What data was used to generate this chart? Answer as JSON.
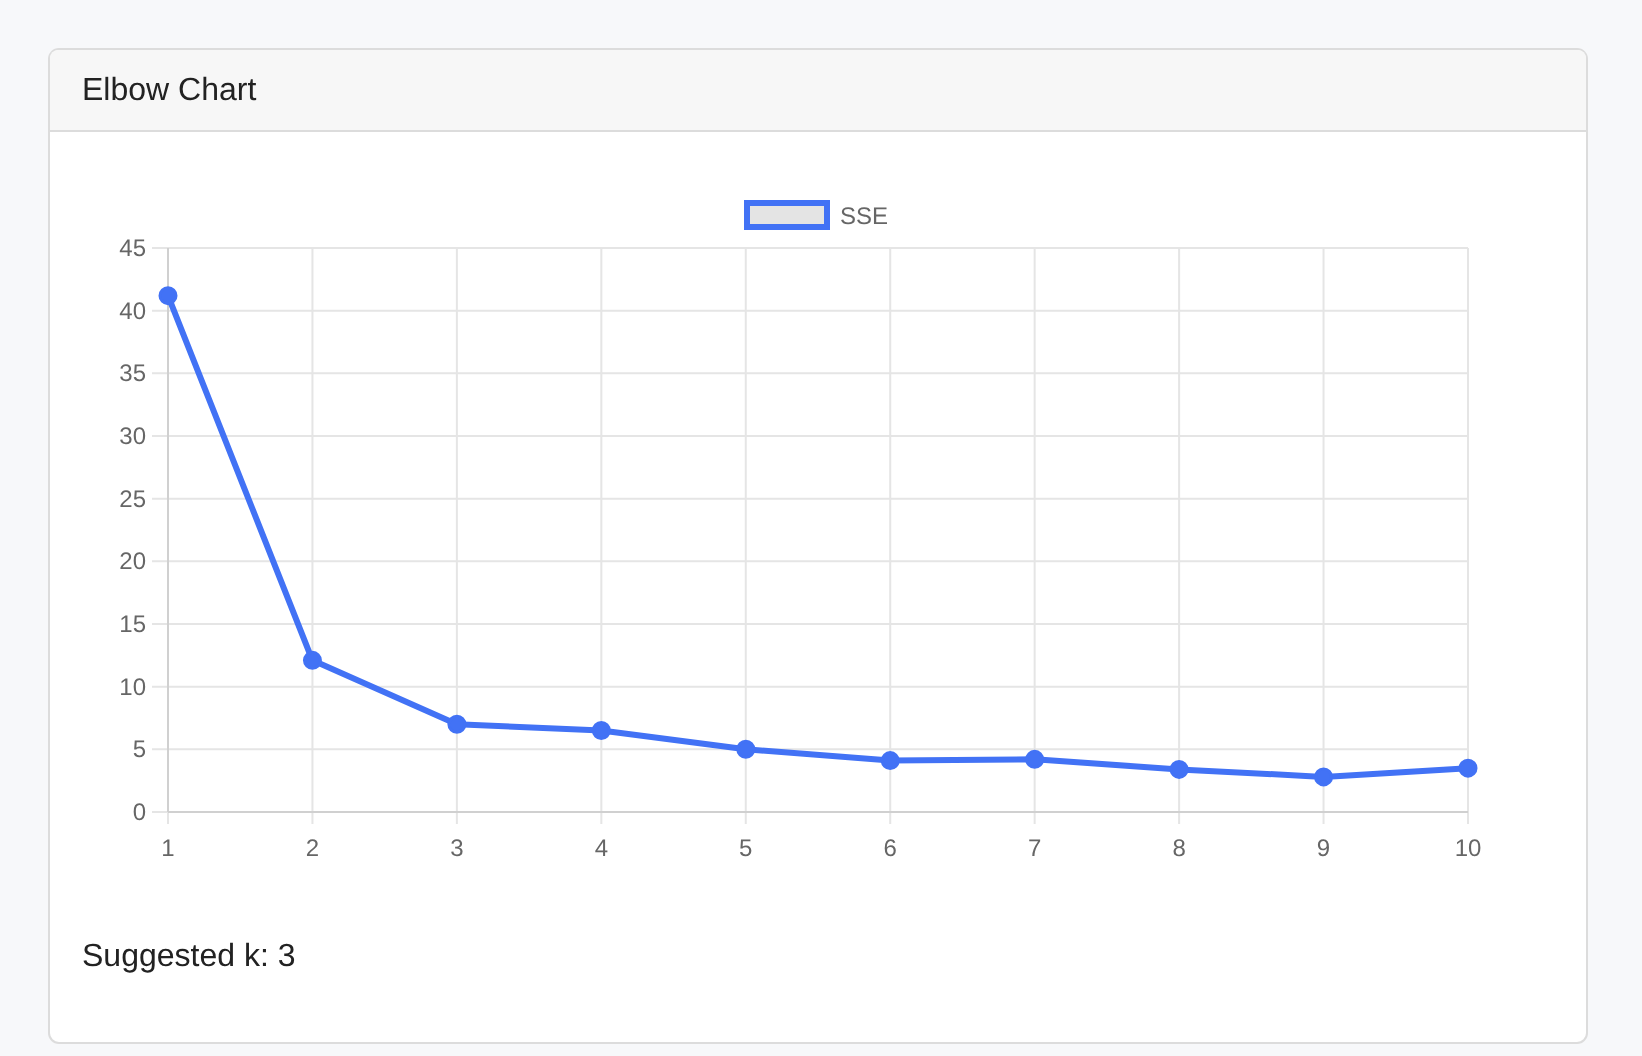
{
  "chart_data": {
    "type": "line",
    "title": "Elbow Chart",
    "categories": [
      "1",
      "2",
      "3",
      "4",
      "5",
      "6",
      "7",
      "8",
      "9",
      "10"
    ],
    "series": [
      {
        "name": "SSE",
        "color": "#4272f5",
        "values": [
          41.2,
          12.1,
          7.0,
          6.5,
          5.0,
          4.1,
          4.2,
          3.4,
          2.8,
          3.5
        ]
      }
    ],
    "ylim": [
      0,
      45
    ],
    "yticks": [
      0,
      5,
      10,
      15,
      20,
      25,
      30,
      35,
      40,
      45
    ],
    "grid": true,
    "legend": "top",
    "marker": "circle",
    "line_style": "solid",
    "annotations": [
      "Suggested k: 3"
    ]
  }
}
